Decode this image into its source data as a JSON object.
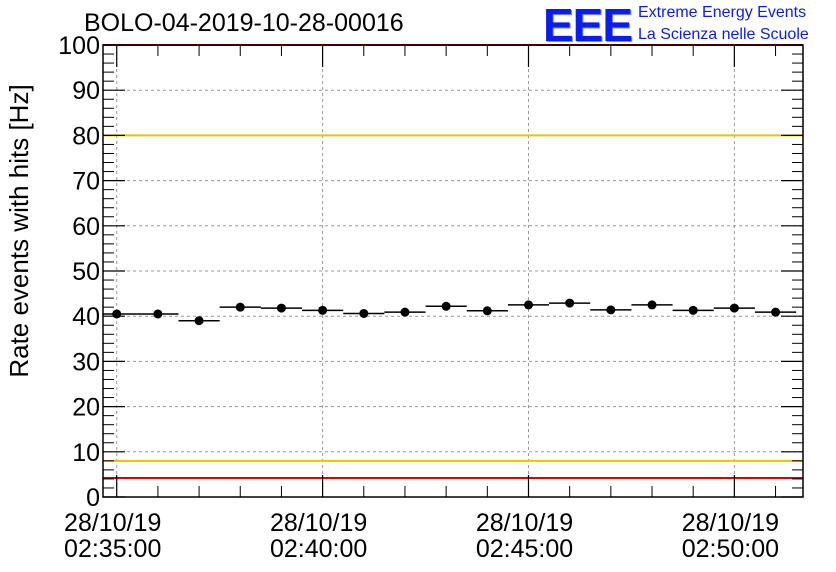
{
  "chart_data": {
    "type": "scatter",
    "title": "BOLO-04-2019-10-28-00016",
    "ylabel": "Rate events with hits [Hz]",
    "xlabel": "",
    "ylim": [
      0,
      100
    ],
    "xlim": [
      "2019-10-28 02:34:40",
      "2019-10-28 02:51:40"
    ],
    "y_ticks": [
      0,
      10,
      20,
      30,
      40,
      50,
      60,
      70,
      80,
      90,
      100
    ],
    "x_ticks": [
      {
        "date": "28/10/19",
        "time": "02:35:00"
      },
      {
        "date": "28/10/19",
        "time": "02:40:00"
      },
      {
        "date": "28/10/19",
        "time": "02:45:00"
      },
      {
        "date": "28/10/19",
        "time": "02:50:00"
      }
    ],
    "grid": true,
    "bin_width_s": 60,
    "series": [
      {
        "x": [
          "02:35:00",
          "02:36:00",
          "02:37:00",
          "02:38:00",
          "02:39:00",
          "02:40:00",
          "02:41:00",
          "02:42:00",
          "02:43:00",
          "02:44:00",
          "02:45:00",
          "02:46:00",
          "02:47:00",
          "02:48:00",
          "02:49:00",
          "02:50:00",
          "02:51:00"
        ],
        "values": [
          40.5,
          40.5,
          39.0,
          42.0,
          41.8,
          41.3,
          40.6,
          40.9,
          42.2,
          41.2,
          42.5,
          42.9,
          41.4,
          42.5,
          41.3,
          41.8,
          40.9
        ],
        "color": "#000000"
      }
    ],
    "reference_lines": [
      {
        "y": 80,
        "color": "#f0c000"
      },
      {
        "y": 8,
        "color": "#f0c000"
      },
      {
        "y": 100,
        "color": "#e00000"
      },
      {
        "y": 4.2,
        "color": "#e00000"
      }
    ]
  },
  "logo": {
    "mark": "EEE",
    "line1": "Extreme Energy Events",
    "line2": "La Scienza nelle Scuole",
    "color": "#0a1df0"
  }
}
